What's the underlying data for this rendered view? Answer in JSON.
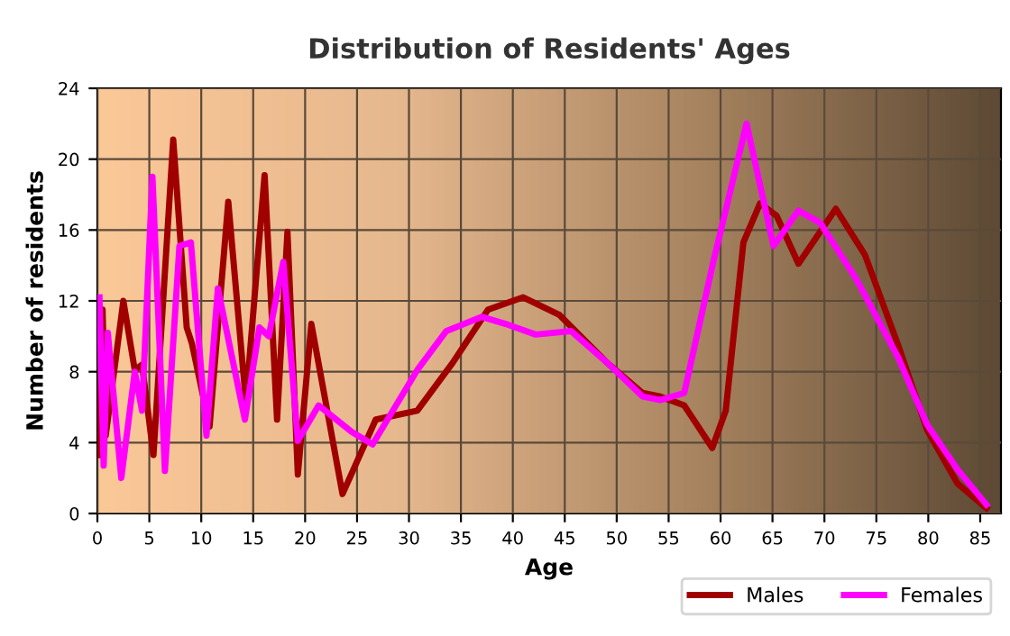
{
  "chart_data": {
    "type": "line",
    "title": "Distribution of Residents' Ages",
    "xlabel": "Age",
    "ylabel": "Number of residents",
    "xlim": [
      0,
      87
    ],
    "xticks": [
      0,
      5,
      10,
      15,
      20,
      25,
      30,
      35,
      40,
      45,
      50,
      55,
      60,
      65,
      70,
      75,
      80,
      85
    ],
    "ylim": [
      0,
      24
    ],
    "yticks": [
      0,
      4,
      8,
      12,
      16,
      20,
      24
    ],
    "grid": true,
    "legend": "bottom right",
    "marker": "none",
    "line_style": "solid",
    "series": [
      {
        "name": "Males",
        "color": "#a00000",
        "x": [
          0.2,
          0.5,
          0.8,
          2.5,
          3.6,
          4.3,
          5.4,
          7.3,
          8.6,
          9.1,
          10.8,
          12.6,
          14.3,
          16.1,
          17.3,
          18.3,
          19.3,
          20.6,
          23.6,
          26.8,
          30.8,
          34.2,
          37.6,
          41.0,
          44.5,
          49.1,
          52.5,
          54.2,
          56.5,
          59.2,
          60.5,
          62.2,
          63.8,
          65.4,
          67.5,
          71.1,
          73.9,
          77.1,
          79.9,
          82.8,
          85.6
        ],
        "values": [
          3.3,
          11.5,
          4.4,
          12.0,
          8.1,
          8.4,
          3.3,
          21.1,
          10.5,
          9.6,
          4.9,
          17.6,
          6.3,
          19.1,
          5.3,
          15.9,
          2.2,
          10.7,
          1.1,
          5.3,
          5.8,
          8.5,
          11.5,
          12.2,
          11.2,
          8.5,
          6.8,
          6.6,
          6.1,
          3.7,
          5.8,
          15.3,
          17.5,
          16.8,
          14.1,
          17.2,
          14.6,
          9.5,
          4.7,
          1.7,
          0.3
        ]
      },
      {
        "name": "Females",
        "color": "#ff00ff",
        "x": [
          0.2,
          0.6,
          1.0,
          2.3,
          3.6,
          4.3,
          5.3,
          6.5,
          7.9,
          9.0,
          10.5,
          11.6,
          14.2,
          15.6,
          16.5,
          17.9,
          19.3,
          21.3,
          24.5,
          26.5,
          30.8,
          33.6,
          37.0,
          39.3,
          42.2,
          45.6,
          49.1,
          52.5,
          54.2,
          56.5,
          59.3,
          62.5,
          65.1,
          67.5,
          69.6,
          73.1,
          77.1,
          79.9,
          82.8,
          85.6
        ],
        "values": [
          12.2,
          2.7,
          10.2,
          2.0,
          8.0,
          5.8,
          19.0,
          2.4,
          15.1,
          15.3,
          4.4,
          12.7,
          5.3,
          10.5,
          10.0,
          14.2,
          4.1,
          6.1,
          4.6,
          3.9,
          8.1,
          10.3,
          11.1,
          10.7,
          10.1,
          10.3,
          8.5,
          6.6,
          6.4,
          6.8,
          14.2,
          22.0,
          15.1,
          17.1,
          16.4,
          13.2,
          8.8,
          5.0,
          2.5,
          0.5
        ]
      }
    ]
  }
}
